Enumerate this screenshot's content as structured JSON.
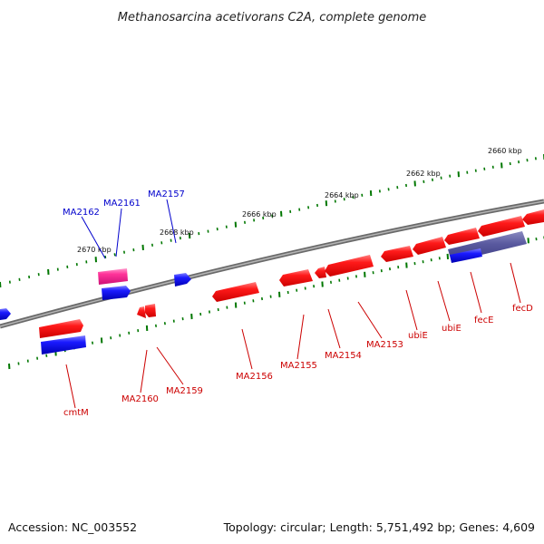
{
  "title": "Methanosarcina acetivorans C2A, complete genome",
  "accession": "Accession: NC_003552",
  "topology": "Topology: circular; Length: 5,751,492 bp; Genes: 4,609",
  "colors": {
    "forward_gene": "#ff0000",
    "reverse_gene": "#0000ff",
    "highlight_gene": "#ff33aa",
    "overlap_gene": "#55559a",
    "backbone": "#808080",
    "tick": "#007700",
    "label_forward": "#cc0000",
    "label_reverse": "#0000cc"
  },
  "scale_labels": [
    {
      "kbp": 2660,
      "text": "2660 kbp"
    },
    {
      "kbp": 2662,
      "text": "2662 kbp"
    },
    {
      "kbp": 2664,
      "text": "2664 kbp"
    },
    {
      "kbp": 2666,
      "text": "2666 kbp"
    },
    {
      "kbp": 2668,
      "text": "2668 kbp"
    },
    {
      "kbp": 2670,
      "text": "2670 kbp"
    }
  ],
  "gene_labels": [
    {
      "name": "MA2162",
      "strand": "reverse"
    },
    {
      "name": "MA2161",
      "strand": "reverse"
    },
    {
      "name": "MA2157",
      "strand": "reverse"
    },
    {
      "name": "cmtM",
      "strand": "forward"
    },
    {
      "name": "MA2160",
      "strand": "forward"
    },
    {
      "name": "MA2159",
      "strand": "forward"
    },
    {
      "name": "MA2156",
      "strand": "forward"
    },
    {
      "name": "MA2155",
      "strand": "forward"
    },
    {
      "name": "MA2154",
      "strand": "forward"
    },
    {
      "name": "MA2153",
      "strand": "forward"
    },
    {
      "name": "ubiE",
      "strand": "forward"
    },
    {
      "name": "ubiE",
      "strand": "forward"
    },
    {
      "name": "fecE",
      "strand": "forward"
    },
    {
      "name": "fecD",
      "strand": "forward"
    }
  ]
}
